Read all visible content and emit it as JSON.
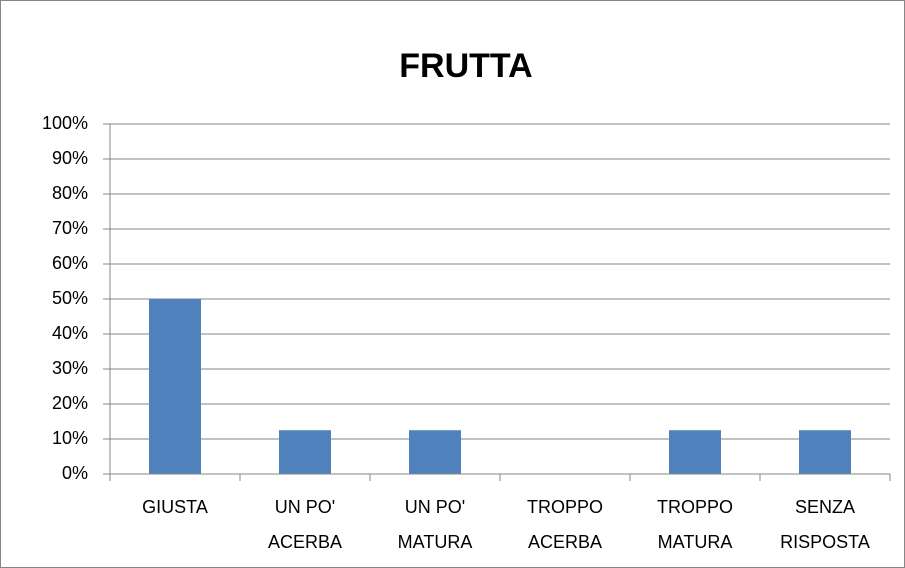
{
  "chart_data": {
    "type": "bar",
    "title": "FRUTTA",
    "categories": [
      "GIUSTA",
      "UN PO' ACERBA",
      "UN PO' MATURA",
      "TROPPO ACERBA",
      "TROPPO MATURA",
      "SENZA RISPOSTA"
    ],
    "values": [
      50,
      12.5,
      12.5,
      0,
      12.5,
      12.5
    ],
    "color": "#4f81bd",
    "ylim": [
      0,
      100
    ],
    "yticks": [
      {
        "value": 0,
        "label": "0%"
      },
      {
        "value": 10,
        "label": "10%"
      },
      {
        "value": 20,
        "label": "20%"
      },
      {
        "value": 30,
        "label": "30%"
      },
      {
        "value": 40,
        "label": "40%"
      },
      {
        "value": 50,
        "label": "50%"
      },
      {
        "value": 60,
        "label": "60%"
      },
      {
        "value": 70,
        "label": "70%"
      },
      {
        "value": 80,
        "label": "80%"
      },
      {
        "value": 90,
        "label": "90%"
      },
      {
        "value": 100,
        "label": "100%"
      }
    ],
    "grid": true
  }
}
